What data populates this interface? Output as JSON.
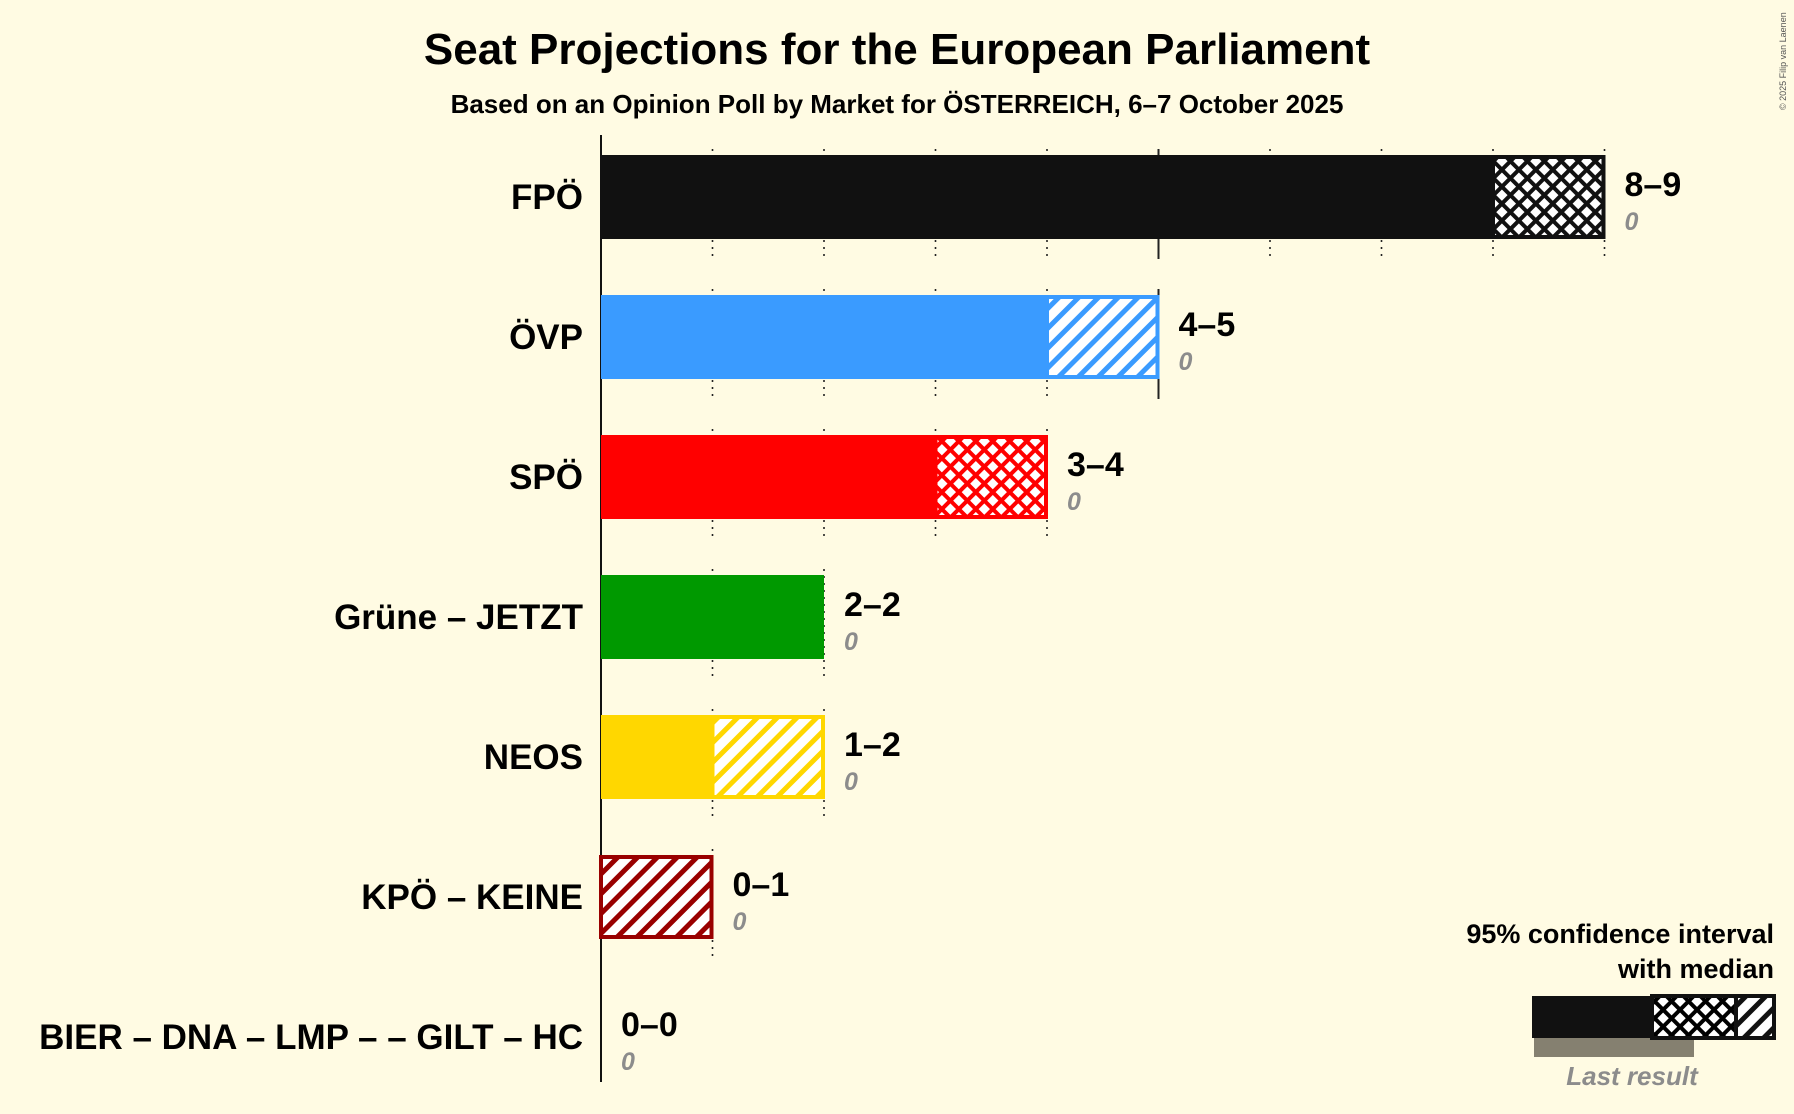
{
  "chart_data": {
    "type": "bar",
    "title": "Seat Projections for the European Parliament",
    "subtitle": "Based on an Opinion Poll by Market for ÖSTERREICH, 6–7 October 2025",
    "copyright": "© 2025 Filip van Laenen",
    "x_range": [
      0,
      9
    ],
    "grid": "dotted vertical lines at each seat",
    "series": [
      {
        "party": "FPÖ",
        "low": 8,
        "high": 9,
        "median": 8,
        "range_label": "8–9",
        "last_result": "0",
        "color": "#111111",
        "ci_pattern": "crosshatch"
      },
      {
        "party": "ÖVP",
        "low": 4,
        "high": 5,
        "median": 4,
        "range_label": "4–5",
        "last_result": "0",
        "color": "#3a9bff",
        "ci_pattern": "diagonal"
      },
      {
        "party": "SPÖ",
        "low": 3,
        "high": 4,
        "median": 3,
        "range_label": "3–4",
        "last_result": "0",
        "color": "#ff0000",
        "ci_pattern": "crosshatch"
      },
      {
        "party": "Grüne – JETZT",
        "low": 2,
        "high": 2,
        "median": 2,
        "range_label": "2–2",
        "last_result": "0",
        "color": "#009900",
        "ci_pattern": "none"
      },
      {
        "party": "NEOS",
        "low": 1,
        "high": 2,
        "median": 1,
        "range_label": "1–2",
        "last_result": "0",
        "color": "#ffd700",
        "ci_pattern": "diagonal"
      },
      {
        "party": "KPÖ – KEINE",
        "low": 0,
        "high": 1,
        "median": 0,
        "range_label": "0–1",
        "last_result": "0",
        "color": "#990000",
        "ci_pattern": "diagonal"
      },
      {
        "party": "BIER – DNA – LMP – – GILT – HC",
        "low": 0,
        "high": 0,
        "median": 0,
        "range_label": "0–0",
        "last_result": "0",
        "color": "#888888",
        "ci_pattern": "none"
      }
    ],
    "legend": {
      "title_line1": "95% confidence interval",
      "title_line2": "with median",
      "last_result_label": "Last result",
      "position": "bottom-right"
    }
  }
}
